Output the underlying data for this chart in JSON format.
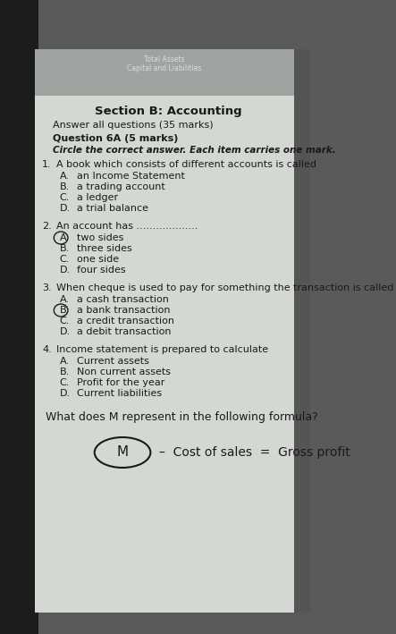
{
  "outer_bg": "#5a5a5a",
  "page_bg": "#c8cdc8",
  "left_dark": "#2a2a2a",
  "header_color": "#888888",
  "tc": "#1a1a1a",
  "circle_color": "#1a1a1a",
  "section_title": "Section B: Accounting",
  "answer_all": "Answer all questions (35 marks)",
  "question_header": "Question 6A (5 marks)",
  "circle_instruction": "Circle the correct answer. Each item carries one mark.",
  "questions": [
    {
      "num": "1.",
      "text": "A book which consists of different accounts is called",
      "options": [
        {
          "label": "A.",
          "text": "an Income Statement",
          "circled": false
        },
        {
          "label": "B.",
          "text": "a trading account",
          "circled": false
        },
        {
          "label": "C.",
          "text": "a ledger",
          "circled": false
        },
        {
          "label": "D.",
          "text": "a trial balance",
          "circled": false
        }
      ]
    },
    {
      "num": "2.",
      "text": "An account has ...................",
      "options": [
        {
          "label": "A.",
          "text": "two sides",
          "circled": true
        },
        {
          "label": "B.",
          "text": "three sides",
          "circled": false
        },
        {
          "label": "C.",
          "text": "one side",
          "circled": false
        },
        {
          "label": "D.",
          "text": "four sides",
          "circled": false
        }
      ]
    },
    {
      "num": "3.",
      "text": "When cheque is used to pay for something the transaction is called",
      "options": [
        {
          "label": "A.",
          "text": "a cash transaction",
          "circled": false
        },
        {
          "label": "B.",
          "text": "a bank transaction",
          "circled": true
        },
        {
          "label": "C.",
          "text": "a credit transaction",
          "circled": false
        },
        {
          "label": "D.",
          "text": "a debit transaction",
          "circled": false
        }
      ]
    },
    {
      "num": "4.",
      "text": "Income statement is prepared to calculate",
      "options": [
        {
          "label": "A.",
          "text": "Current assets",
          "circled": false
        },
        {
          "label": "B.",
          "text": "Non current assets",
          "circled": false
        },
        {
          "label": "C.",
          "text": "Profit for the year",
          "circled": false
        },
        {
          "label": "D.",
          "text": "Current liabilities",
          "circled": false
        }
      ]
    }
  ],
  "last_question": "What does M represent in the following formula?",
  "m_label": "M",
  "formula_suffix": "–  Cost of sales  =  Gross profit"
}
